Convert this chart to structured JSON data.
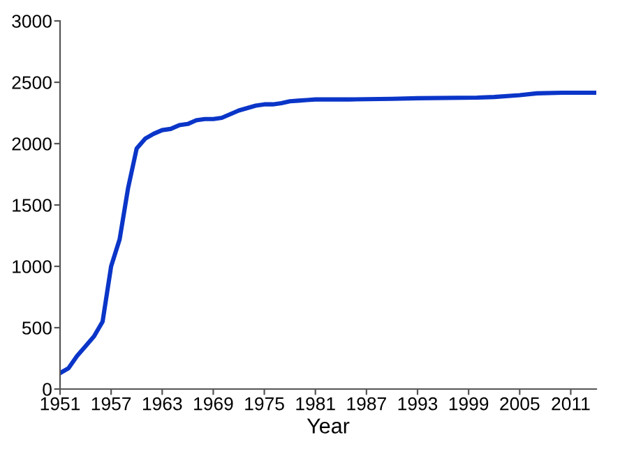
{
  "chart_data": {
    "type": "line",
    "xlabel": "Year",
    "x": [
      1951,
      1952,
      1953,
      1954,
      1955,
      1956,
      1957,
      1958,
      1959,
      1960,
      1961,
      1962,
      1963,
      1964,
      1965,
      1966,
      1967,
      1968,
      1969,
      1970,
      1971,
      1972,
      1973,
      1974,
      1975,
      1976,
      1977,
      1978,
      1979,
      1980,
      1981,
      1985,
      1990,
      1993,
      2000,
      2002,
      2005,
      2007,
      2010,
      2014
    ],
    "series": [
      {
        "color": "#0a35c8",
        "values": [
          130,
          170,
          270,
          350,
          430,
          550,
          1000,
          1220,
          1640,
          1960,
          2040,
          2080,
          2110,
          2120,
          2150,
          2160,
          2190,
          2200,
          2200,
          2210,
          2240,
          2270,
          2290,
          2310,
          2320,
          2320,
          2330,
          2345,
          2350,
          2355,
          2360,
          2360,
          2365,
          2370,
          2375,
          2380,
          2395,
          2410,
          2415,
          2415
        ]
      }
    ],
    "xlim": [
      1951,
      2014
    ],
    "xticks": [
      1951,
      1957,
      1963,
      1969,
      1975,
      1981,
      1987,
      1993,
      1999,
      2005,
      2011
    ],
    "ylim": [
      0,
      3000
    ],
    "yticks": [
      0,
      500,
      1000,
      1500,
      2000,
      2500,
      3000
    ],
    "grid": false,
    "legend": false,
    "marker": "none",
    "line_style": "solid"
  }
}
